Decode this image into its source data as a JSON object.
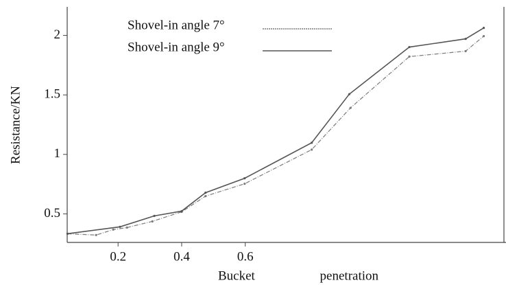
{
  "chart_data": {
    "type": "line",
    "x_label": "Bucket penetration",
    "y_label": "Resistance/KN",
    "xlim": [
      0.04,
      1.42
    ],
    "ylim": [
      0.26,
      2.24
    ],
    "xticks": [
      0.2,
      0.4,
      0.6
    ],
    "yticks": [
      0.5,
      1,
      1.5,
      2
    ],
    "series": [
      {
        "name": "Shovel-in angle 7°",
        "color": "#7a7a7a",
        "dash": true,
        "x": [
          0.041,
          0.131,
          0.185,
          0.228,
          0.308,
          0.4,
          0.475,
          0.598,
          0.809,
          0.931,
          1.116,
          1.293,
          1.35
        ],
        "values": [
          0.333,
          0.322,
          0.368,
          0.385,
          0.437,
          0.517,
          0.649,
          0.753,
          1.04,
          1.391,
          1.822,
          1.868,
          1.994
        ]
      },
      {
        "name": "Shovel-in angle 9°",
        "color": "#555555",
        "dash": false,
        "x": [
          0.041,
          0.206,
          0.314,
          0.4,
          0.475,
          0.598,
          0.809,
          0.927,
          1.116,
          1.293,
          1.35
        ],
        "values": [
          0.333,
          0.391,
          0.483,
          0.523,
          0.678,
          0.799,
          1.098,
          1.506,
          1.902,
          1.971,
          2.063
        ]
      }
    ]
  }
}
